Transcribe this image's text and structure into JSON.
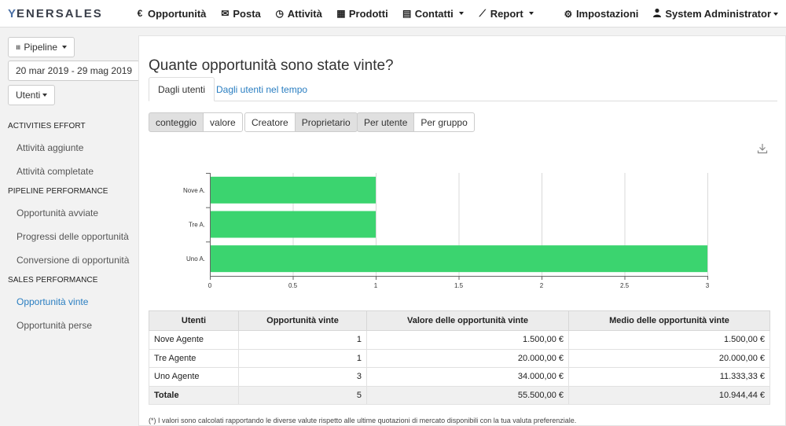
{
  "brand": {
    "logo_text": "ENERSALES",
    "logo_mark": "Y"
  },
  "nav": {
    "items": [
      {
        "icon": "euro-icon",
        "glyph": "€",
        "label": "Opportunità"
      },
      {
        "icon": "envelope-icon",
        "glyph": "✉",
        "label": "Posta"
      },
      {
        "icon": "clock-icon",
        "glyph": "◷",
        "label": "Attività"
      },
      {
        "icon": "box-icon",
        "glyph": "▦",
        "label": "Prodotti"
      },
      {
        "icon": "address-book-icon",
        "glyph": "▤",
        "label": "Contatti"
      },
      {
        "icon": "line-chart-icon",
        "glyph": "⟋",
        "label": "Report"
      }
    ],
    "settings_label": "Impostazioni",
    "user_label": "System Administrator"
  },
  "sidebar": {
    "pipeline_button": "Pipeline",
    "date_range": "20 mar 2019 - 29 mag 2019",
    "users_button": "Utenti",
    "sections": [
      {
        "heading": "ACTIVITIES EFFORT",
        "links": [
          "Attività aggiunte",
          "Attività completate"
        ]
      },
      {
        "heading": "PIPELINE PERFORMANCE",
        "links": [
          "Opportunità avviate",
          "Progressi delle opportunità",
          "Conversione di opportunità"
        ]
      },
      {
        "heading": "SALES PERFORMANCE",
        "links": [
          "Opportunità vinte",
          "Opportunità perse"
        ]
      }
    ],
    "active_link": "Opportunità vinte"
  },
  "main": {
    "title": "Quante opportunità sono state vinte?",
    "tabs": [
      "Dagli utenti",
      "Dagli utenti nel tempo"
    ],
    "metric_toggle": [
      "conteggio",
      "valore"
    ],
    "role_toggle": [
      "Creatore",
      "Proprietario"
    ],
    "grouping_toggle": [
      "Per utente",
      "Per gruppo"
    ],
    "footnote": "(*) I valori sono calcolati rapportando le diverse valute rispetto alle ultime quotazioni di mercato disponibili con la tua valuta preferenziale."
  },
  "chart_data": {
    "type": "bar",
    "orientation": "horizontal",
    "categories": [
      "Nove A.",
      "Tre A.",
      "Uno A."
    ],
    "values": [
      1,
      1,
      3
    ],
    "xlim": [
      0,
      3
    ],
    "xticks": [
      "0",
      "0.5",
      "1",
      "1.5",
      "2",
      "2.5",
      "3"
    ],
    "bar_color": "#3bd46f",
    "grid": true
  },
  "table": {
    "headers": [
      "Utenti",
      "Opportunità vinte",
      "Valore delle opportunità vinte",
      "Medio delle opportunità vinte"
    ],
    "rows": [
      [
        "Nove Agente",
        "1",
        "1.500,00 €",
        "1.500,00 €"
      ],
      [
        "Tre Agente",
        "1",
        "20.000,00 €",
        "20.000,00 €"
      ],
      [
        "Uno Agente",
        "3",
        "34.000,00 €",
        "11.333,33 €"
      ]
    ],
    "total": [
      "Totale",
      "5",
      "55.500,00 €",
      "10.944,44 €"
    ]
  }
}
